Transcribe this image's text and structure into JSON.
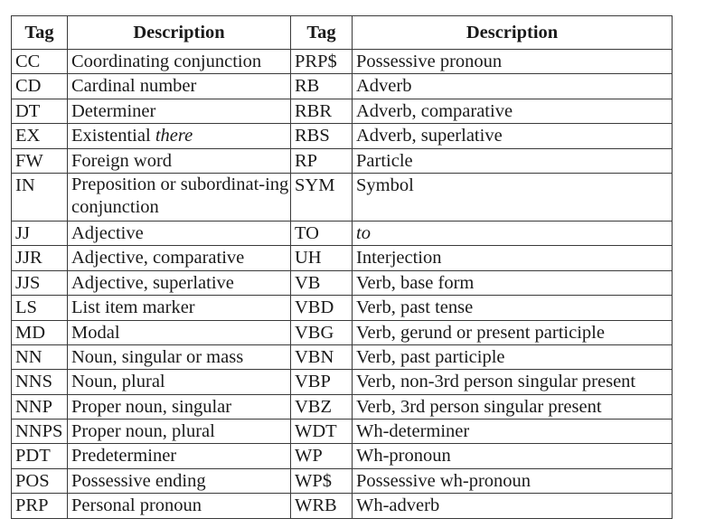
{
  "headers": [
    "Tag",
    "Description",
    "Tag",
    "Description"
  ],
  "rows": [
    {
      "tag1": "CC",
      "desc1": "Coordinating conjunction",
      "tag2": "PRP$",
      "desc2": "Possessive pronoun"
    },
    {
      "tag1": "CD",
      "desc1": "Cardinal number",
      "tag2": "RB",
      "desc2": "Adverb"
    },
    {
      "tag1": "DT",
      "desc1": "Determiner",
      "tag2": "RBR",
      "desc2": "Adverb, comparative"
    },
    {
      "tag1": "EX",
      "desc1": "Existential ",
      "desc1_italic": "there",
      "tag2": "RBS",
      "desc2": "Adverb, superlative"
    },
    {
      "tag1": "FW",
      "desc1": "Foreign word",
      "tag2": "RP",
      "desc2": "Particle"
    },
    {
      "tag1": "IN",
      "desc1": "Preposition or subordinat-ing conjunction",
      "tag2": "SYM",
      "desc2": "Symbol",
      "tall": true
    },
    {
      "tag1": "JJ",
      "desc1": "Adjective",
      "tag2": "TO",
      "desc2": "",
      "desc2_italic": "to"
    },
    {
      "tag1": "JJR",
      "desc1": "Adjective, comparative",
      "tag2": "UH",
      "desc2": "Interjection"
    },
    {
      "tag1": "JJS",
      "desc1": "Adjective, superlative",
      "tag2": "VB",
      "desc2": "Verb, base form"
    },
    {
      "tag1": "LS",
      "desc1": "List item marker",
      "tag2": "VBD",
      "desc2": "Verb, past tense"
    },
    {
      "tag1": "MD",
      "desc1": "Modal",
      "tag2": "VBG",
      "desc2": "Verb, gerund or present participle"
    },
    {
      "tag1": "NN",
      "desc1": "Noun, singular or mass",
      "tag2": "VBN",
      "desc2": "Verb, past participle"
    },
    {
      "tag1": "NNS",
      "desc1": "Noun, plural",
      "tag2": "VBP",
      "desc2": "Verb, non-3rd person singular present"
    },
    {
      "tag1": "NNP",
      "desc1": "Proper noun, singular",
      "tag2": "VBZ",
      "desc2": "Verb, 3rd person singular present"
    },
    {
      "tag1": "NNPS",
      "desc1": "Proper noun, plural",
      "tag2": "WDT",
      "desc2": "Wh-determiner"
    },
    {
      "tag1": "PDT",
      "desc1": "Predeterminer",
      "tag2": "WP",
      "desc2": "Wh-pronoun"
    },
    {
      "tag1": "POS",
      "desc1": "Possessive ending",
      "tag2": "WP$",
      "desc2": "Possessive wh-pronoun"
    },
    {
      "tag1": "PRP",
      "desc1": "Personal pronoun",
      "tag2": "WRB",
      "desc2": "Wh-adverb"
    }
  ]
}
